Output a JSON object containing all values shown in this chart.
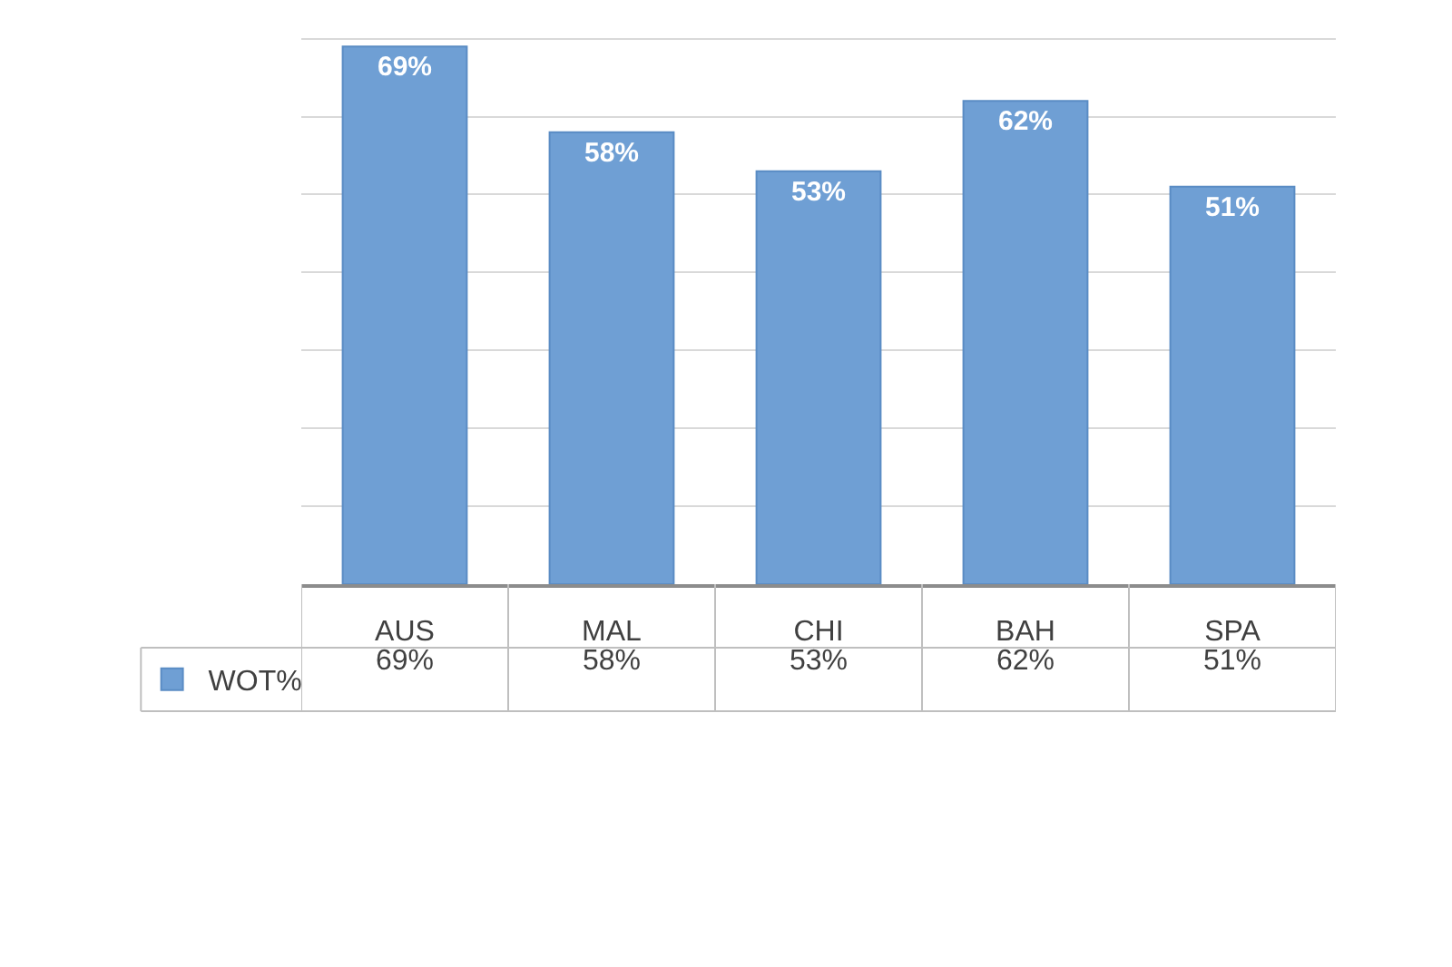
{
  "chart_data": {
    "type": "bar",
    "categories": [
      "AUS",
      "MAL",
      "CHI",
      "BAH",
      "SPA"
    ],
    "series": [
      {
        "name": "WOT%",
        "color": "#6f9fd4",
        "values": [
          69,
          58,
          53,
          62,
          51
        ],
        "value_labels": [
          "69%",
          "58%",
          "53%",
          "62%",
          "51%"
        ]
      }
    ],
    "tick_labels": "x",
    "grid": "y",
    "legend": "bottom left"
  }
}
